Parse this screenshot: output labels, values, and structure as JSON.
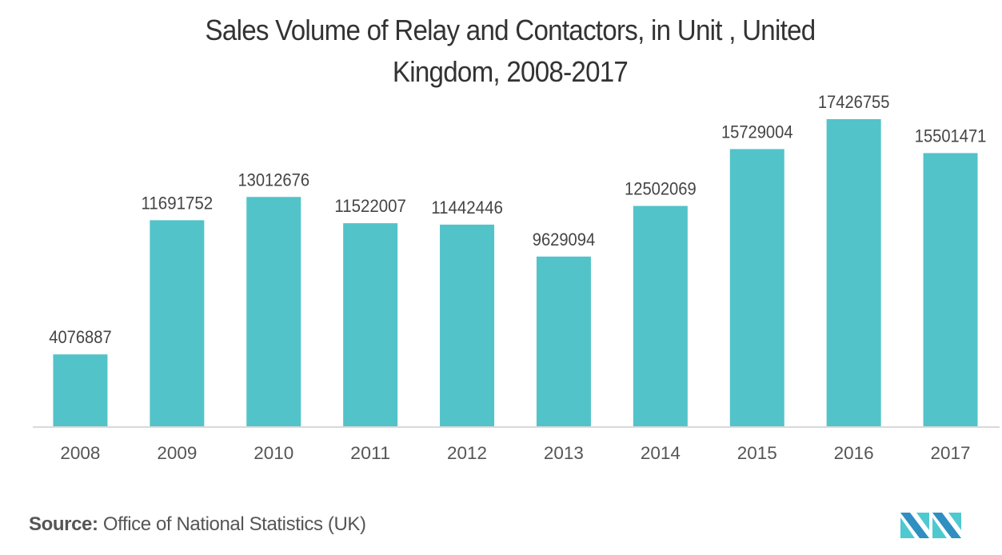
{
  "title_line1": "Sales Volume of Relay and Contactors, in Unit , United",
  "title_line2": "Kingdom, 2008-2017",
  "source_label": "Source:",
  "source_text": "Office of National Statistics (UK)",
  "logo": "mordor-intelligence-logo",
  "colors": {
    "bar": "#52c3c9",
    "axis": "#d9d9d9",
    "label": "#444444",
    "tick": "#555555"
  },
  "chart_data": {
    "type": "bar",
    "title": "Sales Volume of Relay and Contactors, in Unit , United Kingdom, 2008-2017",
    "xlabel": "",
    "ylabel": "",
    "categories": [
      "2008",
      "2009",
      "2010",
      "2011",
      "2012",
      "2013",
      "2014",
      "2015",
      "2016",
      "2017"
    ],
    "values": [
      4076887,
      11691752,
      13012676,
      11522007,
      11442446,
      9629094,
      12502069,
      15729004,
      17426755,
      15501471
    ],
    "ylim": [
      0,
      17426755
    ],
    "grid": false,
    "legend": "none",
    "data_labels": true
  }
}
